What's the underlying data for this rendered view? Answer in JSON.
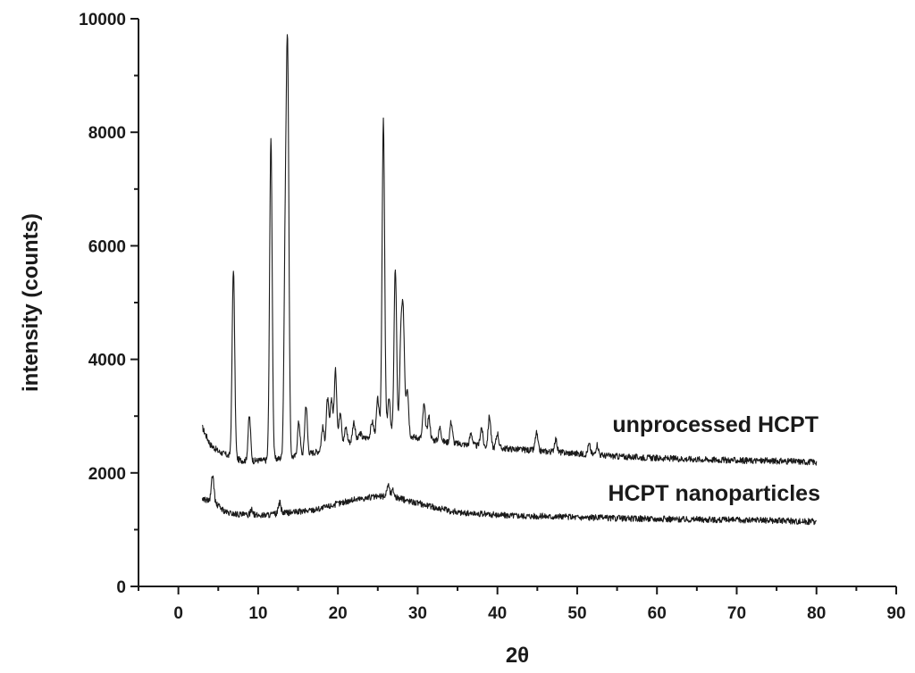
{
  "chart_data": {
    "type": "line",
    "title": "",
    "xlabel": "2θ",
    "ylabel": "intensity (counts)",
    "xlim": [
      -5,
      90
    ],
    "ylim": [
      0,
      10000
    ],
    "x_ticks": [
      0,
      10,
      20,
      30,
      40,
      50,
      60,
      70,
      80,
      90
    ],
    "x_tick_labels": [
      "0",
      "10",
      "20",
      "30",
      "40",
      "50",
      "60",
      "70",
      "80",
      "90"
    ],
    "y_ticks": [
      0,
      2000,
      4000,
      6000,
      8000,
      10000
    ],
    "y_tick_labels": [
      "0",
      "2000",
      "4000",
      "6000",
      "8000",
      "10000"
    ],
    "grid": false,
    "line_color": "#1a1a1a",
    "series": [
      {
        "name": "unprocessed HCPT",
        "baseline": [
          [
            3,
            2800
          ],
          [
            4,
            2500
          ],
          [
            5,
            2380
          ],
          [
            6,
            2320
          ],
          [
            7,
            2250
          ],
          [
            8,
            2220
          ],
          [
            9,
            2200
          ],
          [
            10,
            2220
          ],
          [
            11,
            2220
          ],
          [
            12,
            2240
          ],
          [
            13,
            2260
          ],
          [
            14,
            2270
          ],
          [
            15,
            2300
          ],
          [
            16,
            2330
          ],
          [
            17,
            2360
          ],
          [
            18,
            2400
          ],
          [
            19,
            2450
          ],
          [
            20,
            2480
          ],
          [
            21,
            2520
          ],
          [
            22,
            2560
          ],
          [
            23,
            2600
          ],
          [
            24,
            2640
          ],
          [
            25,
            2680
          ],
          [
            26,
            2700
          ],
          [
            27,
            2700
          ],
          [
            28,
            2680
          ],
          [
            29,
            2650
          ],
          [
            30,
            2620
          ],
          [
            32,
            2580
          ],
          [
            34,
            2530
          ],
          [
            36,
            2500
          ],
          [
            38,
            2470
          ],
          [
            40,
            2440
          ],
          [
            42,
            2420
          ],
          [
            44,
            2400
          ],
          [
            46,
            2380
          ],
          [
            48,
            2360
          ],
          [
            50,
            2340
          ],
          [
            55,
            2290
          ],
          [
            60,
            2260
          ],
          [
            65,
            2240
          ],
          [
            70,
            2220
          ],
          [
            75,
            2210
          ],
          [
            80,
            2190
          ]
        ],
        "peaks": [
          [
            6.9,
            5600
          ],
          [
            8.9,
            3000
          ],
          [
            11.6,
            7900
          ],
          [
            13.4,
            5800
          ],
          [
            13.7,
            9050
          ],
          [
            15.1,
            2900
          ],
          [
            16.0,
            3200
          ],
          [
            18.1,
            2800
          ],
          [
            18.7,
            3300
          ],
          [
            19.2,
            3300
          ],
          [
            19.7,
            3800
          ],
          [
            20.3,
            3100
          ],
          [
            21.0,
            2800
          ],
          [
            22.0,
            2900
          ],
          [
            22.8,
            2700
          ],
          [
            24.3,
            2900
          ],
          [
            25.0,
            3300
          ],
          [
            25.7,
            8200
          ],
          [
            26.4,
            3300
          ],
          [
            27.2,
            5600
          ],
          [
            27.9,
            4300
          ],
          [
            28.2,
            4600
          ],
          [
            28.7,
            3500
          ],
          [
            30.8,
            3200
          ],
          [
            31.4,
            3000
          ],
          [
            32.8,
            2800
          ],
          [
            34.2,
            2900
          ],
          [
            36.7,
            2700
          ],
          [
            38.0,
            2800
          ],
          [
            39.0,
            3000
          ],
          [
            40.0,
            2700
          ],
          [
            44.9,
            2700
          ],
          [
            47.3,
            2600
          ],
          [
            51.5,
            2500
          ],
          [
            52.5,
            2500
          ]
        ]
      },
      {
        "name": "HCPT nanoparticles",
        "baseline": [
          [
            3,
            1550
          ],
          [
            4,
            1500
          ],
          [
            5,
            1420
          ],
          [
            6,
            1300
          ],
          [
            8,
            1260
          ],
          [
            10,
            1250
          ],
          [
            12,
            1270
          ],
          [
            14,
            1300
          ],
          [
            16,
            1330
          ],
          [
            18,
            1380
          ],
          [
            20,
            1460
          ],
          [
            22,
            1530
          ],
          [
            24,
            1570
          ],
          [
            26,
            1590
          ],
          [
            27,
            1580
          ],
          [
            28,
            1540
          ],
          [
            30,
            1470
          ],
          [
            32,
            1400
          ],
          [
            34,
            1330
          ],
          [
            36,
            1290
          ],
          [
            40,
            1260
          ],
          [
            45,
            1240
          ],
          [
            50,
            1220
          ],
          [
            55,
            1200
          ],
          [
            60,
            1190
          ],
          [
            65,
            1180
          ],
          [
            70,
            1170
          ],
          [
            75,
            1160
          ],
          [
            80,
            1140
          ]
        ],
        "peaks": [
          [
            4.3,
            1960
          ],
          [
            9.2,
            1370
          ],
          [
            12.7,
            1470
          ],
          [
            26.3,
            1800
          ],
          [
            26.9,
            1700
          ]
        ]
      }
    ]
  }
}
